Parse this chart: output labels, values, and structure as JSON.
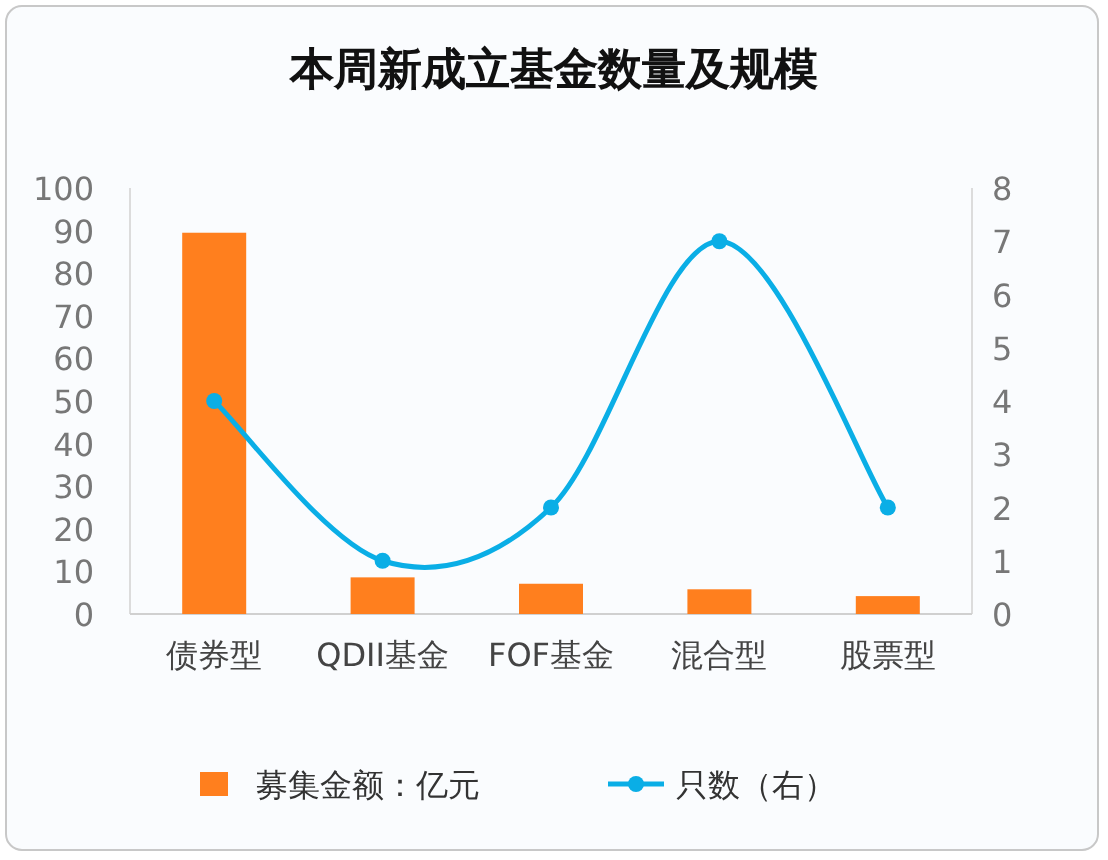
{
  "chart_data": {
    "type": "bar",
    "title": "本周新成立基金数量及规模",
    "categories": [
      "债券型",
      "QDII基金",
      "FOF基金",
      "混合型",
      "股票型"
    ],
    "series": [
      {
        "name": "募集金额：亿元",
        "color": "#ff7f1e",
        "values": [
          89.5,
          8.6,
          7.1,
          5.8,
          4.2
        ]
      },
      {
        "name": "只数（右）",
        "type": "line",
        "axis": "y2",
        "color": "#0aaee6",
        "values": [
          4,
          1,
          2,
          7,
          2
        ]
      }
    ],
    "ylim": [
      0,
      100
    ],
    "yticks": [
      0,
      10,
      20,
      30,
      40,
      50,
      60,
      70,
      80,
      90,
      100
    ],
    "y2lim": [
      0,
      8
    ],
    "y2ticks": [
      0,
      1,
      2,
      3,
      4,
      5,
      6,
      7,
      8
    ],
    "marker": "circle",
    "legend": "bottom",
    "grid": false
  }
}
